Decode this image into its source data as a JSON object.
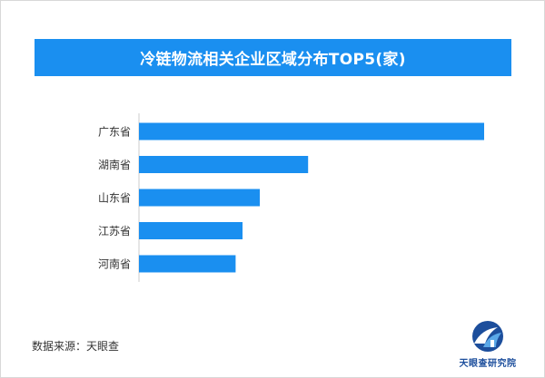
{
  "chart_data": {
    "type": "bar",
    "orientation": "horizontal",
    "title": "冷链物流相关企业区域分布TOP5(家)",
    "categories": [
      "广东省",
      "湖南省",
      "山东省",
      "江苏省",
      "河南省"
    ],
    "values": [
      100,
      49,
      35,
      30,
      28
    ],
    "xlabel": "",
    "ylabel": "",
    "grid": false,
    "legend": "none",
    "bar_color": "#1a8ff0"
  },
  "source_text": "数据来源：天眼查",
  "logo": {
    "text": "天眼查研究院",
    "colors": {
      "dark": "#1c4e9c",
      "light": "#5aa8e8"
    }
  },
  "colors": {
    "banner": "#1a8ff0",
    "axis": "#cccccc",
    "label": "#333333"
  }
}
